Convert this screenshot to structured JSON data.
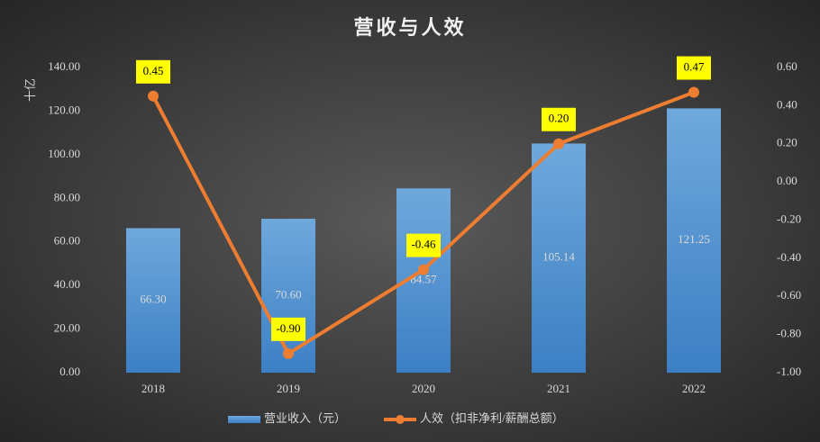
{
  "chart_data": {
    "type": "bar",
    "title": "营收与人效",
    "y_label": "十亿",
    "categories": [
      "2018",
      "2019",
      "2020",
      "2021",
      "2022"
    ],
    "series": [
      {
        "name": "营业收入（元）",
        "type": "bar",
        "color": "#5b9bd5",
        "values": [
          66.3,
          70.6,
          84.57,
          105.14,
          121.25
        ],
        "value_labels": [
          "66.30",
          "70.60",
          "84.57",
          "105.14",
          "121.25"
        ]
      },
      {
        "name": "人效（扣非净利/薪酬总额）",
        "type": "line",
        "axis": "y2",
        "color": "#ed7d31",
        "label_bg": "#ffff00",
        "values": [
          0.45,
          -0.9,
          -0.46,
          0.2,
          0.47
        ],
        "value_labels": [
          "0.45",
          "-0.90",
          "-0.46",
          "0.20",
          "0.47"
        ]
      }
    ],
    "ylim": [
      0,
      140
    ],
    "yticks": [
      {
        "value": 0,
        "label": "0.00"
      },
      {
        "value": 20,
        "label": "20.00"
      },
      {
        "value": 40,
        "label": "40.00"
      },
      {
        "value": 60,
        "label": "60.00"
      },
      {
        "value": 80,
        "label": "80.00"
      },
      {
        "value": 100,
        "label": "100.00"
      },
      {
        "value": 120,
        "label": "120.00"
      },
      {
        "value": 140,
        "label": "140.00"
      }
    ],
    "y2lim": [
      -1,
      0.6
    ],
    "y2ticks": [
      {
        "value": -1,
        "label": "-1.00"
      },
      {
        "value": -0.8,
        "label": "-0.80"
      },
      {
        "value": -0.6,
        "label": "-0.60"
      },
      {
        "value": -0.4,
        "label": "-0.40"
      },
      {
        "value": -0.2,
        "label": "-0.20"
      },
      {
        "value": 0,
        "label": "0.00"
      },
      {
        "value": 0.2,
        "label": "0.20"
      },
      {
        "value": 0.4,
        "label": "0.40"
      },
      {
        "value": 0.6,
        "label": "0.60"
      }
    ],
    "grid": false,
    "legend": "bottom"
  }
}
